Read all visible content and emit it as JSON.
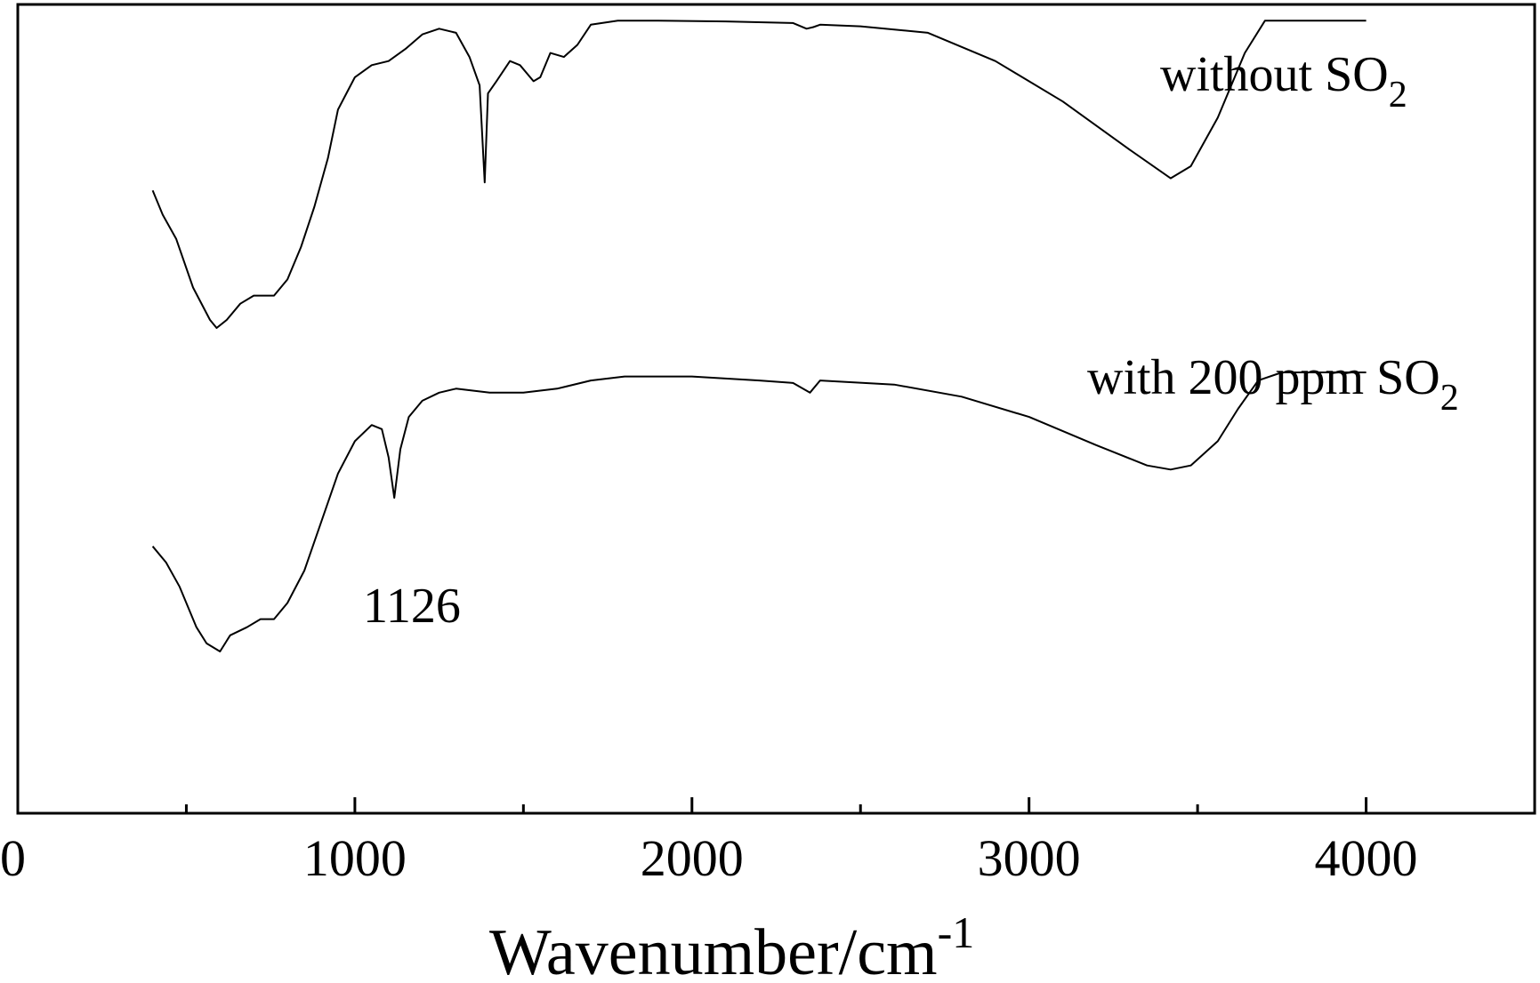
{
  "chart_data": {
    "type": "line",
    "title": "",
    "xlabel": "Wavenumber/cm",
    "xlabel_superscript": "-1",
    "ylabel": "",
    "xlim": [
      0,
      4500
    ],
    "x_ticks_major": [
      0,
      1000,
      2000,
      3000,
      4000
    ],
    "x_tick_labels": [
      "0",
      "1000",
      "2000",
      "3000",
      "4000"
    ],
    "x_ticks_minor": [
      500,
      1500,
      2500,
      3500
    ],
    "y_ticks_shown": false,
    "ylim": [
      0,
      1
    ],
    "grid": false,
    "legend": "inline labels at right end of each curve",
    "series": [
      {
        "name": "without SO",
        "name_subscript": "2",
        "points": [
          [
            400,
            0.77
          ],
          [
            430,
            0.74
          ],
          [
            470,
            0.71
          ],
          [
            520,
            0.65
          ],
          [
            570,
            0.61
          ],
          [
            590,
            0.6
          ],
          [
            620,
            0.61
          ],
          [
            660,
            0.63
          ],
          [
            700,
            0.64
          ],
          [
            760,
            0.64
          ],
          [
            800,
            0.66
          ],
          [
            840,
            0.7
          ],
          [
            880,
            0.75
          ],
          [
            920,
            0.81
          ],
          [
            950,
            0.87
          ],
          [
            1000,
            0.91
          ],
          [
            1050,
            0.925
          ],
          [
            1100,
            0.93
          ],
          [
            1150,
            0.945
          ],
          [
            1200,
            0.963
          ],
          [
            1250,
            0.97
          ],
          [
            1300,
            0.965
          ],
          [
            1340,
            0.935
          ],
          [
            1370,
            0.9
          ],
          [
            1385,
            0.78
          ],
          [
            1395,
            0.89
          ],
          [
            1420,
            0.905
          ],
          [
            1460,
            0.93
          ],
          [
            1490,
            0.925
          ],
          [
            1530,
            0.905
          ],
          [
            1550,
            0.91
          ],
          [
            1580,
            0.94
          ],
          [
            1620,
            0.935
          ],
          [
            1660,
            0.95
          ],
          [
            1700,
            0.975
          ],
          [
            1780,
            0.98
          ],
          [
            1900,
            0.98
          ],
          [
            2100,
            0.979
          ],
          [
            2300,
            0.977
          ],
          [
            2340,
            0.97
          ],
          [
            2360,
            0.972
          ],
          [
            2380,
            0.975
          ],
          [
            2500,
            0.973
          ],
          [
            2700,
            0.965
          ],
          [
            2900,
            0.93
          ],
          [
            3100,
            0.88
          ],
          [
            3300,
            0.82
          ],
          [
            3420,
            0.785
          ],
          [
            3480,
            0.8
          ],
          [
            3560,
            0.86
          ],
          [
            3640,
            0.94
          ],
          [
            3700,
            0.98
          ],
          [
            3800,
            0.98
          ],
          [
            4000,
            0.98
          ]
        ]
      },
      {
        "name": "with 200 ppm SO",
        "name_subscript": "2",
        "points": [
          [
            400,
            0.33
          ],
          [
            440,
            0.31
          ],
          [
            480,
            0.28
          ],
          [
            530,
            0.23
          ],
          [
            560,
            0.21
          ],
          [
            600,
            0.2
          ],
          [
            630,
            0.22
          ],
          [
            680,
            0.23
          ],
          [
            720,
            0.24
          ],
          [
            760,
            0.24
          ],
          [
            800,
            0.26
          ],
          [
            850,
            0.3
          ],
          [
            900,
            0.36
          ],
          [
            950,
            0.42
          ],
          [
            1000,
            0.46
          ],
          [
            1050,
            0.48
          ],
          [
            1080,
            0.475
          ],
          [
            1100,
            0.44
          ],
          [
            1117,
            0.39
          ],
          [
            1135,
            0.45
          ],
          [
            1160,
            0.49
          ],
          [
            1200,
            0.51
          ],
          [
            1250,
            0.52
          ],
          [
            1300,
            0.525
          ],
          [
            1400,
            0.52
          ],
          [
            1500,
            0.52
          ],
          [
            1600,
            0.525
          ],
          [
            1700,
            0.535
          ],
          [
            1800,
            0.54
          ],
          [
            2000,
            0.54
          ],
          [
            2200,
            0.535
          ],
          [
            2300,
            0.532
          ],
          [
            2350,
            0.52
          ],
          [
            2380,
            0.535
          ],
          [
            2600,
            0.53
          ],
          [
            2800,
            0.515
          ],
          [
            3000,
            0.49
          ],
          [
            3200,
            0.455
          ],
          [
            3350,
            0.43
          ],
          [
            3420,
            0.425
          ],
          [
            3480,
            0.43
          ],
          [
            3560,
            0.46
          ],
          [
            3620,
            0.5
          ],
          [
            3680,
            0.535
          ],
          [
            3750,
            0.545
          ],
          [
            4000,
            0.545
          ]
        ]
      }
    ],
    "annotations": [
      {
        "text": "1126",
        "x": 1126,
        "y": 0.39
      }
    ]
  }
}
